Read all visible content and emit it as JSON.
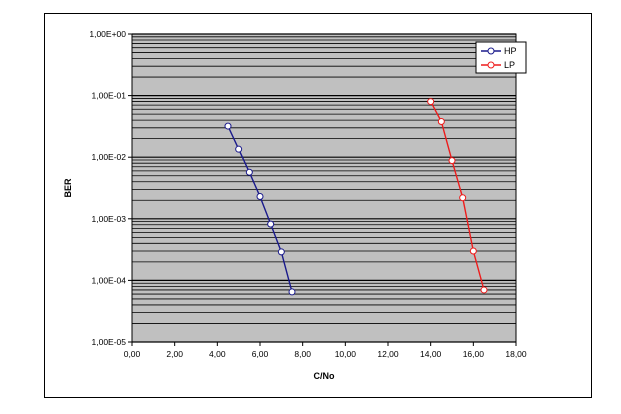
{
  "chart_data": {
    "type": "line",
    "title": "",
    "xlabel": "C/No",
    "ylabel": "BER",
    "xlim": [
      0,
      18
    ],
    "ylim": [
      1e-05,
      1
    ],
    "yscale": "log",
    "grid": true,
    "legend": "top-right",
    "x_tick_labels": [
      "0,00",
      "2,00",
      "4,00",
      "6,00",
      "8,00",
      "10,00",
      "12,00",
      "14,00",
      "16,00",
      "18,00"
    ],
    "y_tick_labels": [
      "1,00E-05",
      "1,00E-04",
      "1,00E-03",
      "1,00E-02",
      "1,00E-01",
      "1,00E+00"
    ],
    "series": [
      {
        "name": "HP",
        "color": "#1a1a8c",
        "x": [
          4.5,
          5.0,
          5.5,
          6.0,
          6.5,
          7.0,
          7.5
        ],
        "y": [
          0.032,
          0.0135,
          0.0057,
          0.0023,
          0.00082,
          0.00029,
          6.5e-05
        ]
      },
      {
        "name": "LP",
        "color": "#ee1c1c",
        "x": [
          14.0,
          14.5,
          15.0,
          15.5,
          16.0,
          16.5
        ],
        "y": [
          0.08,
          0.038,
          0.0088,
          0.0022,
          0.0003,
          7e-05
        ]
      }
    ]
  }
}
